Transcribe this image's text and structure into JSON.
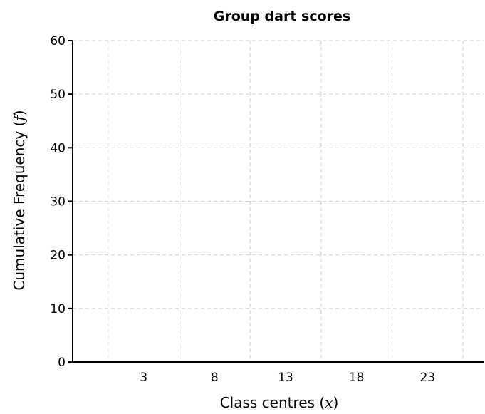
{
  "chart_data": {
    "type": "line",
    "title": "Group dart scores",
    "xlabel": {
      "prefix": "Class centres ",
      "open": "(",
      "var": "x",
      "close": ")"
    },
    "ylabel": {
      "prefix": "Cumulative Frequency ",
      "open": "(",
      "var": "f",
      "close": ")"
    },
    "x_ticks": [
      3,
      8,
      13,
      18,
      23
    ],
    "x_grid": [
      0.5,
      5.5,
      10.5,
      15.5,
      20.5,
      25.5
    ],
    "xlim": [
      -2,
      27
    ],
    "y_ticks": [
      0,
      10,
      20,
      30,
      40,
      50,
      60
    ],
    "ylim": [
      0,
      60
    ],
    "grid": true,
    "series": []
  }
}
